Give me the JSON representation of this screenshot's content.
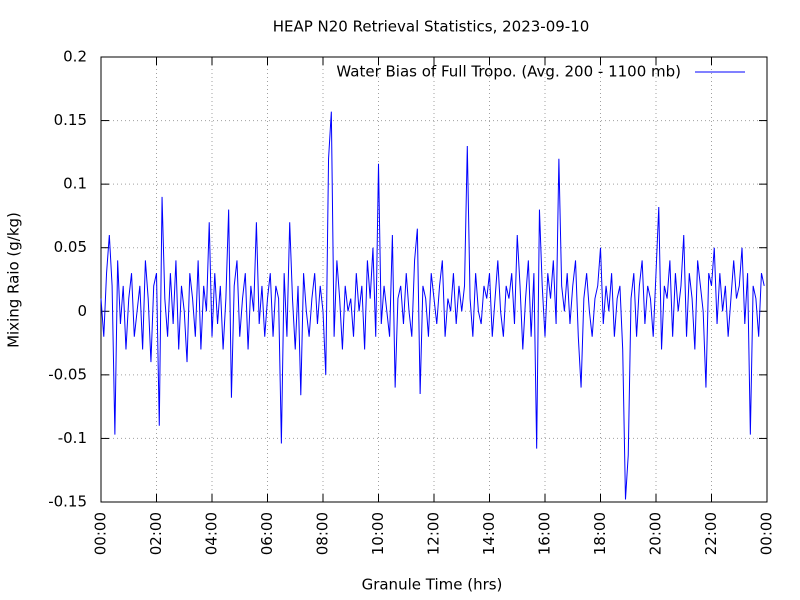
{
  "chart_data": {
    "type": "line",
    "title": "HEAP N20 Retrieval Statistics, 2023-09-10",
    "x_label": "Granule Time (hrs)",
    "y_label": "Mixing Raio (g/kg)",
    "xlim": [
      0,
      24
    ],
    "ylim": [
      -0.15,
      0.2
    ],
    "xticks": [
      {
        "value": 0,
        "label": "00:00"
      },
      {
        "value": 2,
        "label": "02:00"
      },
      {
        "value": 4,
        "label": "04:00"
      },
      {
        "value": 6,
        "label": "06:00"
      },
      {
        "value": 8,
        "label": "08:00"
      },
      {
        "value": 10,
        "label": "10:00"
      },
      {
        "value": 12,
        "label": "12:00"
      },
      {
        "value": 14,
        "label": "14:00"
      },
      {
        "value": 16,
        "label": "16:00"
      },
      {
        "value": 18,
        "label": "18:00"
      },
      {
        "value": 20,
        "label": "20:00"
      },
      {
        "value": 22,
        "label": "22:00"
      },
      {
        "value": 24,
        "label": "00:00"
      }
    ],
    "yticks": [
      -0.15,
      -0.1,
      -0.05,
      0,
      0.05,
      0.1,
      0.15,
      0.2
    ],
    "grid": true,
    "legend": "top-right",
    "x": [
      0,
      0.1,
      0.2,
      0.3,
      0.4,
      0.5,
      0.6,
      0.7,
      0.8,
      0.9,
      1,
      1.1,
      1.2,
      1.3,
      1.4,
      1.5,
      1.6,
      1.7,
      1.8,
      1.9,
      2,
      2.1,
      2.2,
      2.3,
      2.4,
      2.5,
      2.6,
      2.7,
      2.8,
      2.9,
      3,
      3.1,
      3.2,
      3.3,
      3.4,
      3.5,
      3.6,
      3.7,
      3.8,
      3.9,
      4,
      4.1,
      4.2,
      4.3,
      4.4,
      4.5,
      4.6,
      4.7,
      4.8,
      4.9,
      5,
      5.1,
      5.2,
      5.3,
      5.4,
      5.5,
      5.6,
      5.7,
      5.8,
      5.9,
      6,
      6.1,
      6.2,
      6.3,
      6.4,
      6.5,
      6.6,
      6.7,
      6.8,
      6.9,
      7,
      7.1,
      7.2,
      7.3,
      7.4,
      7.5,
      7.6,
      7.7,
      7.8,
      7.9,
      8,
      8.1,
      8.2,
      8.3,
      8.4,
      8.5,
      8.6,
      8.7,
      8.8,
      8.9,
      9,
      9.1,
      9.2,
      9.3,
      9.4,
      9.5,
      9.6,
      9.7,
      9.8,
      9.9,
      10,
      10.1,
      10.2,
      10.3,
      10.4,
      10.5,
      10.6,
      10.7,
      10.8,
      10.9,
      11,
      11.1,
      11.2,
      11.3,
      11.4,
      11.5,
      11.6,
      11.7,
      11.8,
      11.9,
      12,
      12.1,
      12.2,
      12.3,
      12.4,
      12.5,
      12.6,
      12.7,
      12.8,
      12.9,
      13,
      13.1,
      13.2,
      13.3,
      13.4,
      13.5,
      13.6,
      13.7,
      13.8,
      13.9,
      14,
      14.1,
      14.2,
      14.3,
      14.4,
      14.5,
      14.6,
      14.7,
      14.8,
      14.9,
      15,
      15.1,
      15.2,
      15.3,
      15.4,
      15.5,
      15.6,
      15.7,
      15.8,
      15.9,
      16,
      16.1,
      16.2,
      16.3,
      16.4,
      16.5,
      16.6,
      16.7,
      16.8,
      16.9,
      17,
      17.1,
      17.2,
      17.3,
      17.4,
      17.5,
      17.6,
      17.7,
      17.8,
      17.9,
      18,
      18.1,
      18.2,
      18.3,
      18.4,
      18.5,
      18.6,
      18.7,
      18.8,
      18.9,
      19,
      19.1,
      19.2,
      19.3,
      19.4,
      19.5,
      19.6,
      19.7,
      19.8,
      19.9,
      20,
      20.1,
      20.2,
      20.3,
      20.4,
      20.5,
      20.6,
      20.7,
      20.8,
      20.9,
      21,
      21.1,
      21.2,
      21.3,
      21.4,
      21.5,
      21.6,
      21.7,
      21.8,
      21.9,
      22,
      22.1,
      22.2,
      22.3,
      22.4,
      22.5,
      22.6,
      22.7,
      22.8,
      22.9,
      23,
      23.1,
      23.2,
      23.3,
      23.4,
      23.5,
      23.6,
      23.7,
      23.8,
      23.9
    ],
    "series": [
      {
        "name": "Water Bias of Full Tropo. (Avg. 200 - 1100 mb)",
        "color": "#0000ff",
        "values": [
          0.01,
          -0.02,
          0.03,
          0.06,
          0.02,
          -0.097,
          0.04,
          -0.01,
          0.02,
          -0.03,
          0.01,
          0.03,
          -0.02,
          0,
          0.02,
          -0.03,
          0.04,
          0.01,
          -0.04,
          0.02,
          0.03,
          -0.09,
          0.09,
          0.01,
          -0.02,
          0.03,
          -0.01,
          0.04,
          -0.03,
          0.02,
          0,
          -0.04,
          0.03,
          0.01,
          -0.02,
          0.04,
          -0.03,
          0.02,
          0,
          0.07,
          -0.02,
          0.03,
          -0.01,
          0.02,
          -0.03,
          0.01,
          0.08,
          -0.068,
          0.02,
          0.04,
          -0.02,
          0.01,
          0.03,
          -0.03,
          0.02,
          0,
          0.07,
          -0.01,
          0.02,
          -0.02,
          0.01,
          0.03,
          -0.02,
          0.02,
          0.01,
          -0.104,
          0.03,
          -0.02,
          0.07,
          0.01,
          -0.03,
          0.02,
          -0.066,
          0.03,
          0,
          -0.02,
          0.01,
          0.03,
          -0.01,
          0.02,
          0,
          -0.05,
          0.12,
          0.157,
          -0.02,
          0.04,
          0.01,
          -0.03,
          0.02,
          0,
          0.01,
          -0.02,
          0.03,
          0,
          0.02,
          -0.03,
          0.04,
          0.01,
          0.05,
          -0.02,
          0.116,
          -0.01,
          0.02,
          0,
          -0.02,
          0.06,
          -0.06,
          0.01,
          0.02,
          -0.01,
          0.03,
          0,
          -0.02,
          0.04,
          0.065,
          -0.065,
          0.02,
          0.01,
          -0.02,
          0.03,
          0.01,
          -0.01,
          0.02,
          0.04,
          -0.02,
          0.01,
          0,
          0.03,
          -0.01,
          0.02,
          0,
          0.02,
          0.13,
          0.01,
          -0.02,
          0.03,
          0,
          -0.01,
          0.02,
          0.01,
          0.03,
          -0.02,
          0.01,
          0.04,
          0,
          -0.02,
          0.02,
          0.01,
          0.03,
          -0.01,
          0.06,
          0.02,
          -0.03,
          0.01,
          0.04,
          -0.02,
          0.03,
          -0.108,
          0.08,
          0.02,
          -0.02,
          0.03,
          0.01,
          0.04,
          -0.01,
          0.12,
          0.02,
          0,
          0.03,
          -0.01,
          0.02,
          0.04,
          -0.02,
          -0.06,
          0.01,
          0.03,
          0,
          -0.02,
          0.01,
          0.02,
          0.05,
          -0.01,
          0.02,
          0,
          0.03,
          -0.02,
          0.01,
          0.02,
          -0.03,
          -0.148,
          -0.113,
          0.01,
          0.03,
          -0.02,
          0.02,
          0.04,
          -0.01,
          0.02,
          0.01,
          -0.02,
          0.03,
          0.082,
          -0.03,
          0.02,
          0.01,
          0.04,
          -0.02,
          0.03,
          0,
          0.02,
          0.06,
          -0.02,
          0.03,
          0.01,
          -0.03,
          0.04,
          0.02,
          0,
          -0.06,
          0.03,
          0.02,
          0.05,
          -0.01,
          0.03,
          0,
          0.02,
          -0.02,
          0.01,
          0.04,
          0.01,
          0.02,
          0.05,
          -0.01,
          0.03,
          -0.097,
          0.02,
          0.01,
          -0.02,
          0.03,
          0.02
        ]
      }
    ]
  }
}
